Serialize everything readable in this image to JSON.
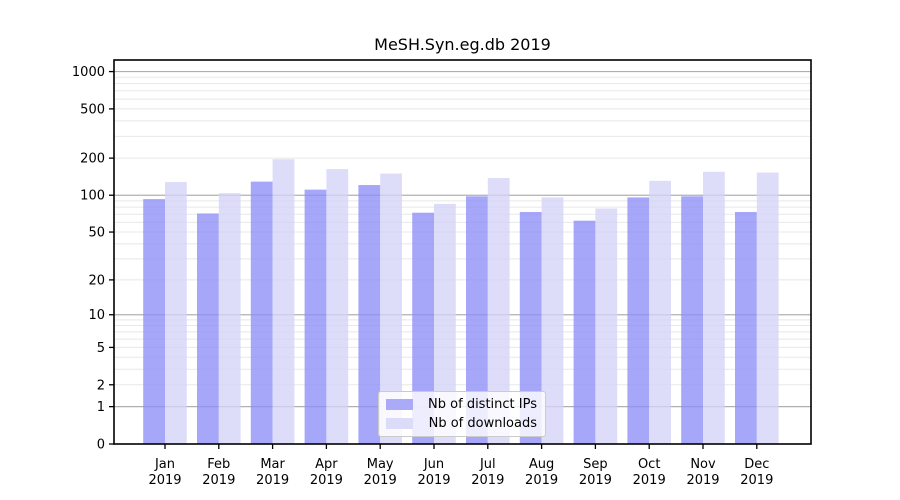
{
  "chart_data": {
    "type": "bar",
    "title": "MeSH.Syn.eg.db 2019",
    "categories": [
      "Jan",
      "Feb",
      "Mar",
      "Apr",
      "May",
      "Jun",
      "Jul",
      "Aug",
      "Sep",
      "Oct",
      "Nov",
      "Dec"
    ],
    "x_year_label": "2019",
    "series": [
      {
        "name": "Nb of distinct IPs",
        "color": "#aaaaf8",
        "fill_rgba": "rgba(142,142,247,0.78)",
        "values": [
          93,
          71,
          129,
          111,
          121,
          72,
          98,
          73,
          62,
          96,
          98,
          73
        ]
      },
      {
        "name": "Nb of downloads",
        "color": "#dcdcf8",
        "fill_rgba": "rgba(212,212,247,0.78)",
        "values": [
          128,
          104,
          196,
          163,
          150,
          85,
          138,
          96,
          78,
          131,
          155,
          153
        ]
      }
    ],
    "yscale": "log1p",
    "ylim": [
      0,
      1240
    ],
    "ytick_labels": [
      0,
      1,
      2,
      5,
      10,
      20,
      50,
      100,
      200,
      500,
      1000
    ],
    "major_gridlines": [
      1,
      10,
      100,
      1000
    ],
    "minor_gridlines": [
      2,
      3,
      4,
      5,
      6,
      7,
      8,
      9,
      20,
      30,
      40,
      50,
      60,
      70,
      80,
      90,
      200,
      300,
      400,
      500,
      600,
      700,
      800,
      900
    ],
    "grid": true,
    "legend": {
      "position": "lower-center",
      "entries": [
        "Nb of distinct IPs",
        "Nb of downloads"
      ]
    },
    "colors": {
      "major_grid": "#b0b0b0",
      "minor_grid": "#e8e8e8",
      "spine": "#000000",
      "text": "#000000",
      "legend_border": "#cbcbcb"
    }
  }
}
